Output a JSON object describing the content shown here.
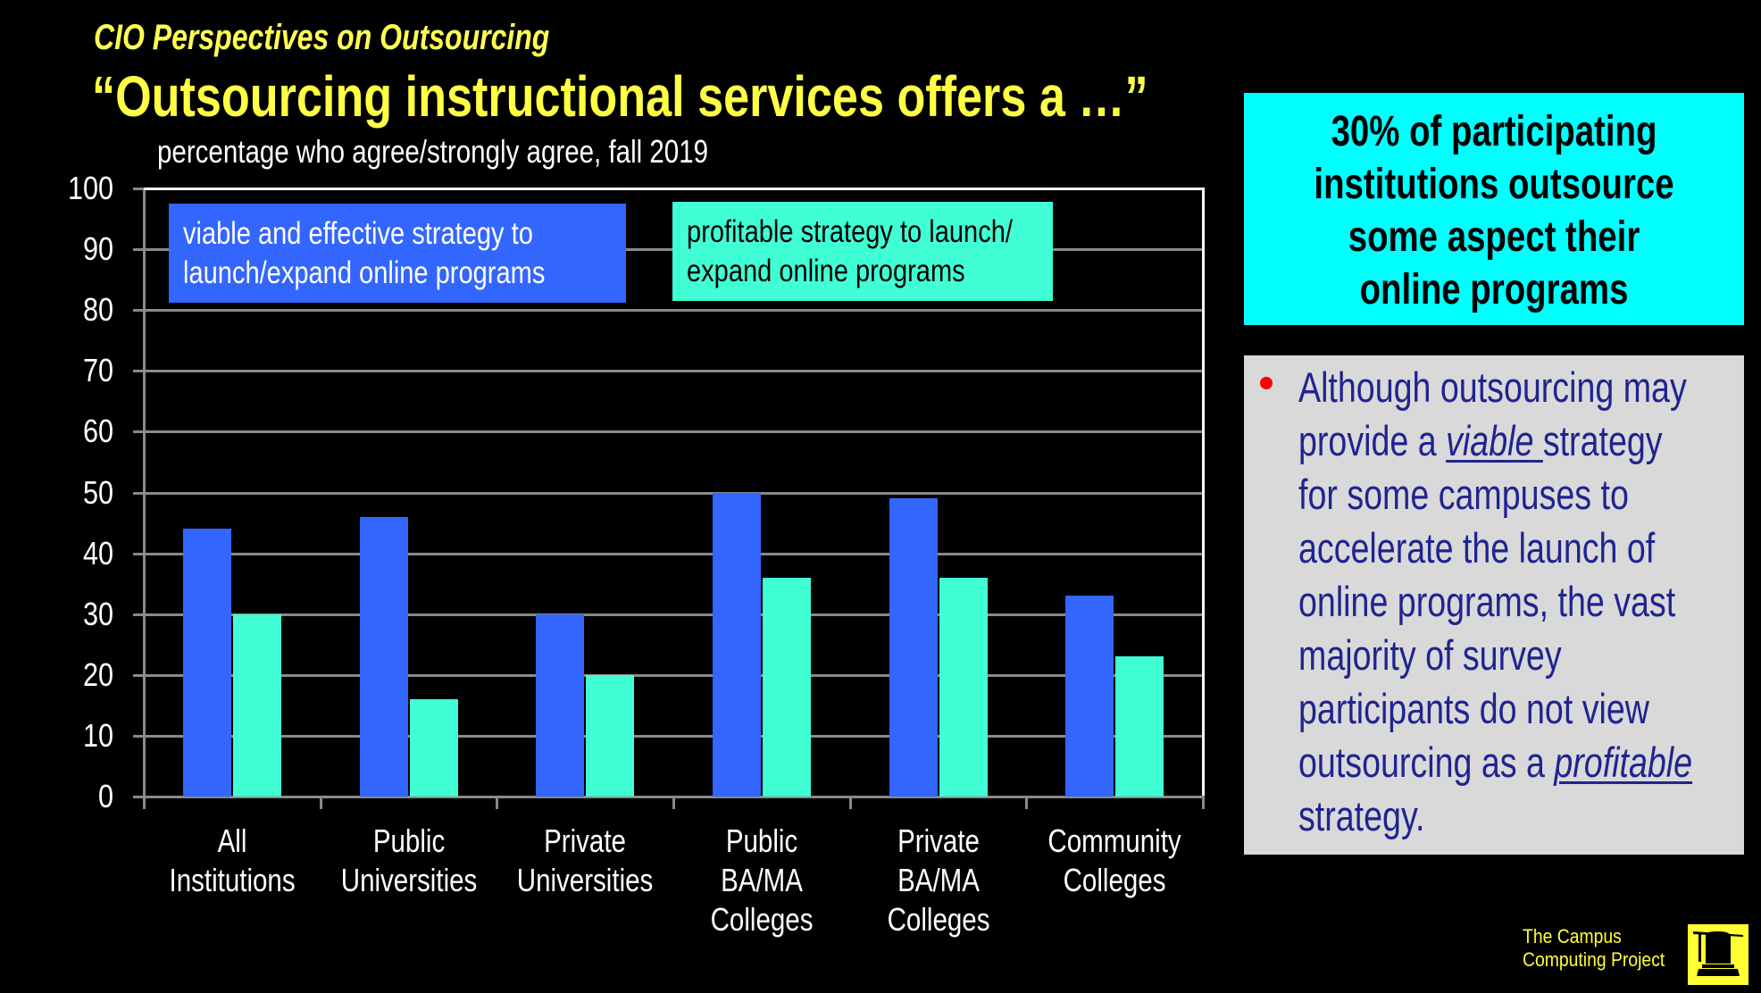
{
  "header": {
    "subtitle": "CIO Perspectives on Outsourcing",
    "title": "“Outsourcing instructional services offers a …”",
    "subheading": "percentage who agree/strongly agree, fall 2019"
  },
  "legend": [
    {
      "line1": "viable and effective strategy to",
      "line2": "launch/expand online programs",
      "color": "#3366ff"
    },
    {
      "line1": "profitable strategy to launch/",
      "line2": "expand online programs",
      "color": "#40ffd4"
    }
  ],
  "axis": {
    "y_ticks": [
      "100",
      "90",
      "80",
      "70",
      "60",
      "50",
      "40",
      "30",
      "20",
      "10",
      "0"
    ]
  },
  "categories": [
    {
      "lines": [
        "All",
        "Institutions"
      ]
    },
    {
      "lines": [
        "Public",
        "Universities"
      ]
    },
    {
      "lines": [
        "Private",
        "Universities"
      ]
    },
    {
      "lines": [
        "Public",
        "BA/MA",
        "Colleges"
      ]
    },
    {
      "lines": [
        "Private",
        "BA/MA",
        "Colleges"
      ]
    },
    {
      "lines": [
        "Community",
        "Colleges"
      ]
    }
  ],
  "callout": {
    "lines": [
      "30% of participating",
      "institutions outsource",
      "some aspect their",
      "online programs"
    ],
    "background": "#00ffff"
  },
  "note": {
    "lines": [
      {
        "pre": "Although outsourcing may"
      },
      {
        "pre": "provide a ",
        "emph": "viable ",
        "post": "strategy"
      },
      {
        "pre": "for some campuses to"
      },
      {
        "pre": "accelerate the launch of"
      },
      {
        "pre": "online programs, the vast"
      },
      {
        "pre": "majority of survey"
      },
      {
        "pre": "participants do not view"
      },
      {
        "pre": "outsourcing as a ",
        "emph": "profitable",
        "post": ""
      },
      {
        "pre": "strategy."
      }
    ],
    "bullet_color": "#ff0000",
    "text_color": "#1f2490"
  },
  "logo": {
    "line1": "The Campus",
    "line2": "Computing Project",
    "icon": "campus-computing-logo-icon"
  },
  "chart_data": {
    "type": "bar",
    "title": "“Outsourcing instructional services offers a …”",
    "subtitle": "percentage who agree/strongly agree, fall 2019",
    "categories": [
      "All Institutions",
      "Public Universities",
      "Private Universities",
      "Public BA/MA Colleges",
      "Private BA/MA Colleges",
      "Community Colleges"
    ],
    "series": [
      {
        "name": "viable and effective strategy to launch/expand online programs",
        "color": "#3366ff",
        "values": [
          44,
          46,
          30,
          50,
          49,
          33
        ]
      },
      {
        "name": "profitable strategy to launch/ expand online programs",
        "color": "#40ffd4",
        "values": [
          30,
          16,
          20,
          36,
          36,
          23
        ]
      }
    ],
    "xlabel": "",
    "ylabel": "",
    "ylim": [
      0,
      100
    ],
    "yticks": [
      0,
      10,
      20,
      30,
      40,
      50,
      60,
      70,
      80,
      90,
      100
    ],
    "grid": true,
    "legend_position": "top-inside"
  }
}
